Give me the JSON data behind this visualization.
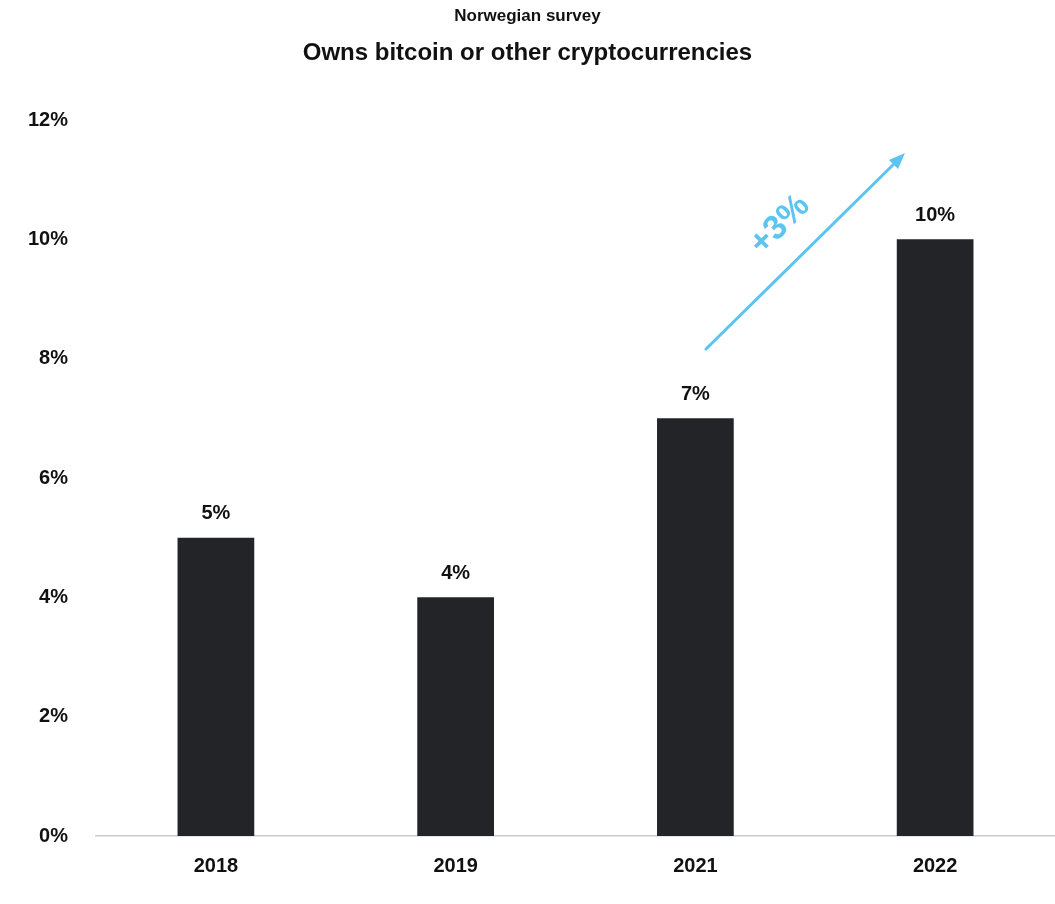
{
  "chart_data": {
    "type": "bar",
    "subtitle": "Norwegian survey",
    "title": "Owns bitcoin or other cryptocurrencies",
    "categories": [
      "2018",
      "2019",
      "2021",
      "2022"
    ],
    "values": [
      5,
      4,
      7,
      10
    ],
    "color": "#222428",
    "value_labels": [
      "5%",
      "4%",
      "7%",
      "10%"
    ],
    "ylim": [
      0,
      12
    ],
    "yticks": [
      {
        "value": 0,
        "label": "0%"
      },
      {
        "value": 2,
        "label": "2%"
      },
      {
        "value": 4,
        "label": "4%"
      },
      {
        "value": 6,
        "label": "6%"
      },
      {
        "value": 8,
        "label": "8%"
      },
      {
        "value": 10,
        "label": "10%"
      },
      {
        "value": 12,
        "label": "12%"
      }
    ],
    "grid": false,
    "legend": false,
    "annotations": [
      "+3%"
    ]
  }
}
